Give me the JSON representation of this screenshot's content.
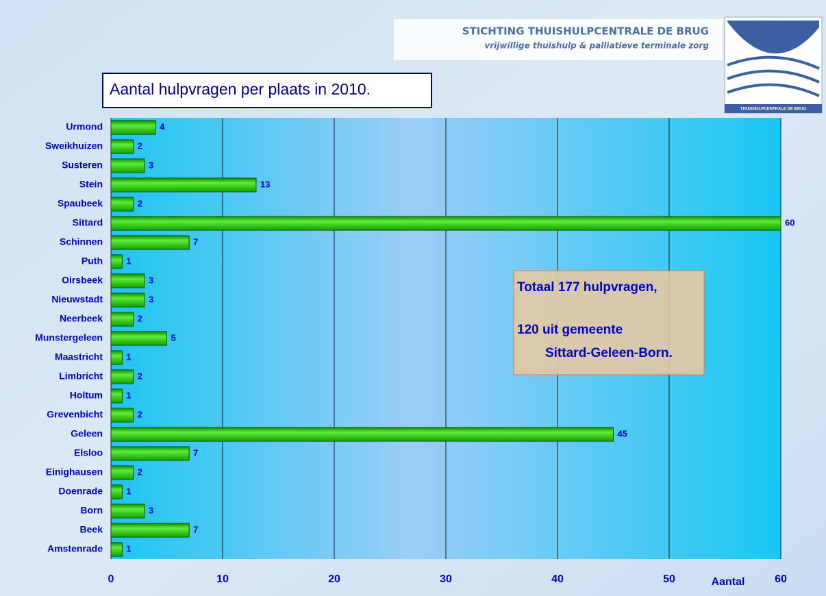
{
  "header": {
    "title": "STICHTING THUISHULPCENTRALE DE BRUG",
    "subtitle": "vrijwillige thuishulp & palliatieve terminale zorg",
    "logo_text": "THUISHULPCENTRALE DE BRUG"
  },
  "chart_data": {
    "type": "hbar",
    "title": "Aantal hulpvragen per plaats in 2010.",
    "categories": [
      "Urmond",
      "Sweikhuizen",
      "Susteren",
      "Stein",
      "Spaubeek",
      "Sittard",
      "Schinnen",
      "Puth",
      "Oirsbeek",
      "Nieuwstadt",
      "Neerbeek",
      "Munstergeleen",
      "Maastricht",
      "Limbricht",
      "Holtum",
      "Grevenbicht",
      "Geleen",
      "Elsloo",
      "Einighausen",
      "Doenrade",
      "Born",
      "Beek",
      "Amstenrade"
    ],
    "values": [
      4,
      2,
      3,
      13,
      2,
      60,
      7,
      1,
      3,
      3,
      2,
      5,
      1,
      2,
      1,
      2,
      45,
      7,
      2,
      1,
      3,
      7,
      1
    ],
    "color": "#22cc00",
    "xlim": [
      0,
      60
    ],
    "xticks": [
      0,
      10,
      20,
      30,
      40,
      50,
      60
    ],
    "grid": true,
    "x_label": "Aantal",
    "annotation": [
      "Totaal 177 hulpvragen,",
      "120 uit gemeente",
      "Sittard-Geleen-Born."
    ]
  }
}
